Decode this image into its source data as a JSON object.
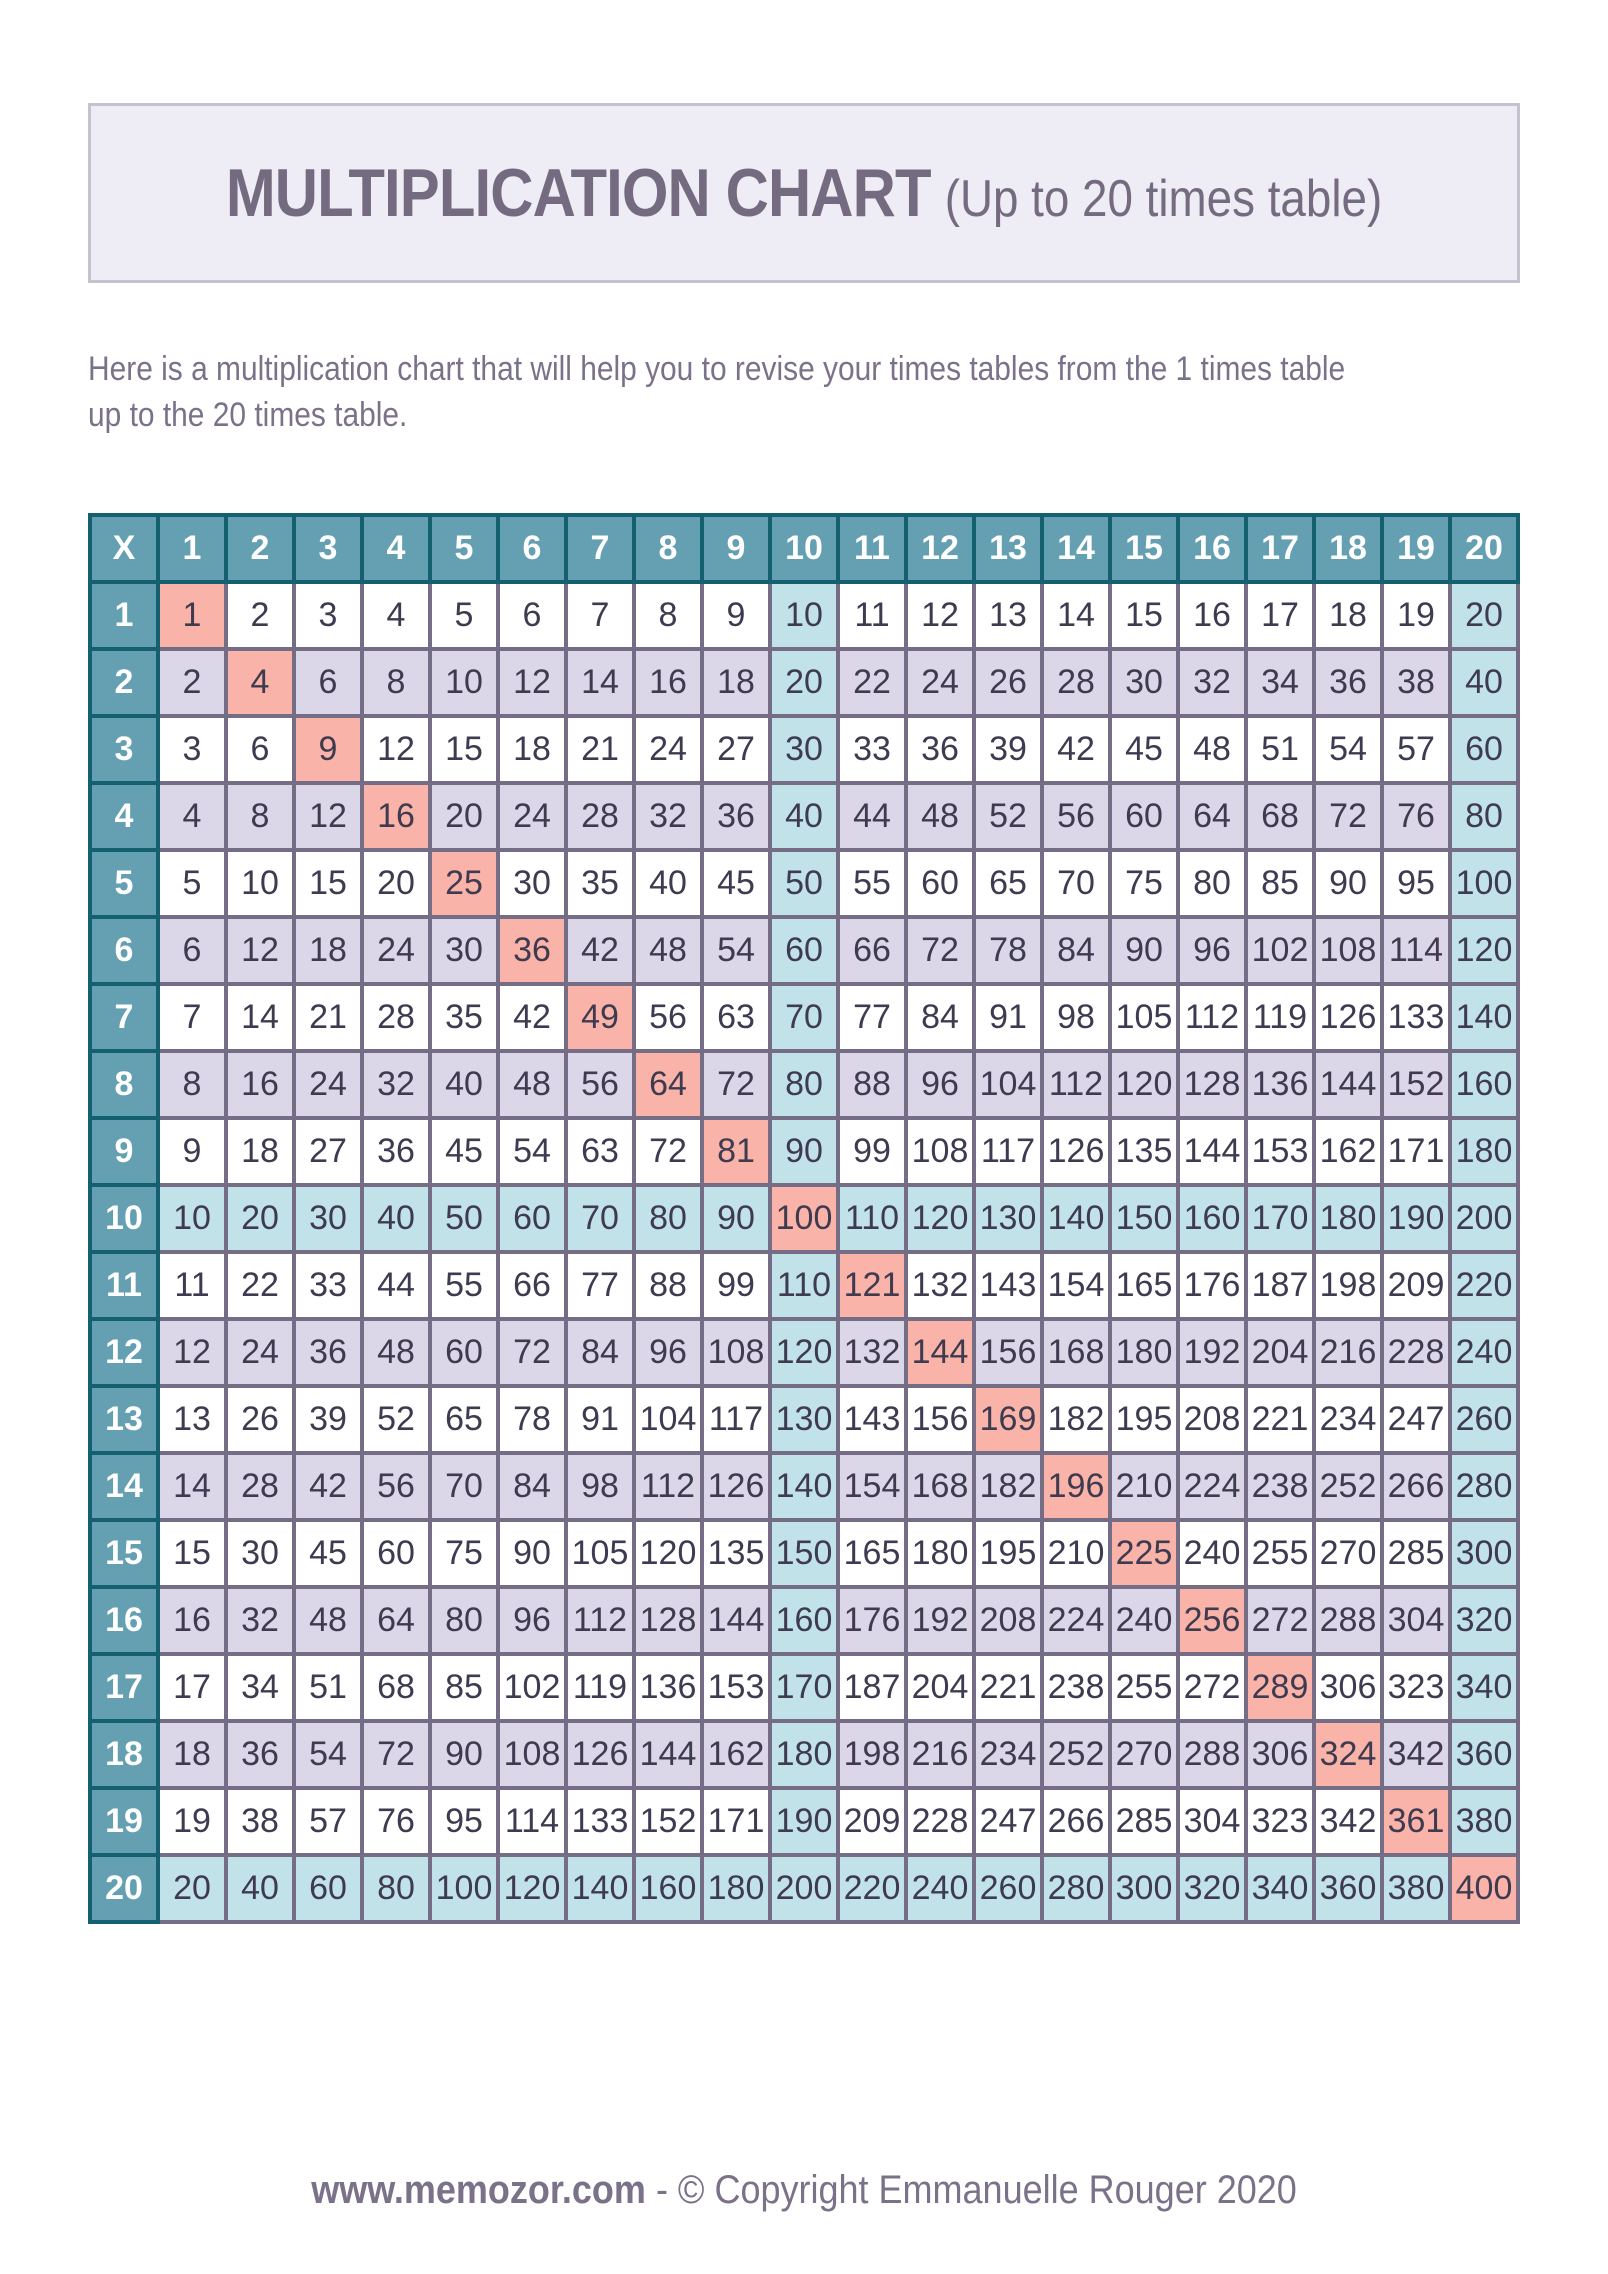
{
  "header": {
    "title_main": "MULTIPLICATION CHART",
    "title_sub": "(Up to 20 times table)"
  },
  "intro": {
    "line1": "Here is a multiplication chart that will help you to revise your times tables from the 1 times table",
    "line2": "up to the 20 times table."
  },
  "table": {
    "corner_label": "X",
    "column_headers": [
      1,
      2,
      3,
      4,
      5,
      6,
      7,
      8,
      9,
      10,
      11,
      12,
      13,
      14,
      15,
      16,
      17,
      18,
      19,
      20
    ],
    "rows": [
      {
        "header": 1,
        "values": [
          1,
          2,
          3,
          4,
          5,
          6,
          7,
          8,
          9,
          10,
          11,
          12,
          13,
          14,
          15,
          16,
          17,
          18,
          19,
          20
        ]
      },
      {
        "header": 2,
        "values": [
          2,
          4,
          6,
          8,
          10,
          12,
          14,
          16,
          18,
          20,
          22,
          24,
          26,
          28,
          30,
          32,
          34,
          36,
          38,
          40
        ]
      },
      {
        "header": 3,
        "values": [
          3,
          6,
          9,
          12,
          15,
          18,
          21,
          24,
          27,
          30,
          33,
          36,
          39,
          42,
          45,
          48,
          51,
          54,
          57,
          60
        ]
      },
      {
        "header": 4,
        "values": [
          4,
          8,
          12,
          16,
          20,
          24,
          28,
          32,
          36,
          40,
          44,
          48,
          52,
          56,
          60,
          64,
          68,
          72,
          76,
          80
        ]
      },
      {
        "header": 5,
        "values": [
          5,
          10,
          15,
          20,
          25,
          30,
          35,
          40,
          45,
          50,
          55,
          60,
          65,
          70,
          75,
          80,
          85,
          90,
          95,
          100
        ]
      },
      {
        "header": 6,
        "values": [
          6,
          12,
          18,
          24,
          30,
          36,
          42,
          48,
          54,
          60,
          66,
          72,
          78,
          84,
          90,
          96,
          102,
          108,
          114,
          120
        ]
      },
      {
        "header": 7,
        "values": [
          7,
          14,
          21,
          28,
          35,
          42,
          49,
          56,
          63,
          70,
          77,
          84,
          91,
          98,
          105,
          112,
          119,
          126,
          133,
          140
        ]
      },
      {
        "header": 8,
        "values": [
          8,
          16,
          24,
          32,
          40,
          48,
          56,
          64,
          72,
          80,
          88,
          96,
          104,
          112,
          120,
          128,
          136,
          144,
          152,
          160
        ]
      },
      {
        "header": 9,
        "values": [
          9,
          18,
          27,
          36,
          45,
          54,
          63,
          72,
          81,
          90,
          99,
          108,
          117,
          126,
          135,
          144,
          153,
          162,
          171,
          180
        ]
      },
      {
        "header": 10,
        "values": [
          10,
          20,
          30,
          40,
          50,
          60,
          70,
          80,
          90,
          100,
          110,
          120,
          130,
          140,
          150,
          160,
          170,
          180,
          190,
          200
        ]
      },
      {
        "header": 11,
        "values": [
          11,
          22,
          33,
          44,
          55,
          66,
          77,
          88,
          99,
          110,
          121,
          132,
          143,
          154,
          165,
          176,
          187,
          198,
          209,
          220
        ]
      },
      {
        "header": 12,
        "values": [
          12,
          24,
          36,
          48,
          60,
          72,
          84,
          96,
          108,
          120,
          132,
          144,
          156,
          168,
          180,
          192,
          204,
          216,
          228,
          240
        ]
      },
      {
        "header": 13,
        "values": [
          13,
          26,
          39,
          52,
          65,
          78,
          91,
          104,
          117,
          130,
          143,
          156,
          169,
          182,
          195,
          208,
          221,
          234,
          247,
          260
        ]
      },
      {
        "header": 14,
        "values": [
          14,
          28,
          42,
          56,
          70,
          84,
          98,
          112,
          126,
          140,
          154,
          168,
          182,
          196,
          210,
          224,
          238,
          252,
          266,
          280
        ]
      },
      {
        "header": 15,
        "values": [
          15,
          30,
          45,
          60,
          75,
          90,
          105,
          120,
          135,
          150,
          165,
          180,
          195,
          210,
          225,
          240,
          255,
          270,
          285,
          300
        ]
      },
      {
        "header": 16,
        "values": [
          16,
          32,
          48,
          64,
          80,
          96,
          112,
          128,
          144,
          160,
          176,
          192,
          208,
          224,
          240,
          256,
          272,
          288,
          304,
          320
        ]
      },
      {
        "header": 17,
        "values": [
          17,
          34,
          51,
          68,
          85,
          102,
          119,
          136,
          153,
          170,
          187,
          204,
          221,
          238,
          255,
          272,
          289,
          306,
          323,
          340
        ]
      },
      {
        "header": 18,
        "values": [
          18,
          36,
          54,
          72,
          90,
          108,
          126,
          144,
          162,
          180,
          198,
          216,
          234,
          252,
          270,
          288,
          306,
          324,
          342,
          360
        ]
      },
      {
        "header": 19,
        "values": [
          19,
          38,
          57,
          76,
          95,
          114,
          133,
          152,
          171,
          190,
          209,
          228,
          247,
          266,
          285,
          304,
          323,
          342,
          361,
          380
        ]
      },
      {
        "header": 20,
        "values": [
          20,
          40,
          60,
          80,
          100,
          120,
          140,
          160,
          180,
          200,
          220,
          240,
          260,
          280,
          300,
          320,
          340,
          360,
          380,
          400
        ]
      }
    ]
  },
  "footer": {
    "site": "www.memozor.com",
    "separator": " - ",
    "copyright": "© Copyright Emmanuelle Rouger 2020"
  },
  "colors": {
    "header_fill": "#64a0b1",
    "header_border": "#156070",
    "grid_border": "#746d85",
    "cell_white": "#ffffff",
    "cell_lavender": "#dbd7e9",
    "cell_blue": "#c2e2ea",
    "cell_salmon": "#fab3a9",
    "cell_text": "#3e3b50",
    "header_text": "#ffffff",
    "title_text": "#746b80",
    "body_text": "#7b7289",
    "title_box_fill": "#eeecf4",
    "title_box_border": "#c5c2cf"
  }
}
